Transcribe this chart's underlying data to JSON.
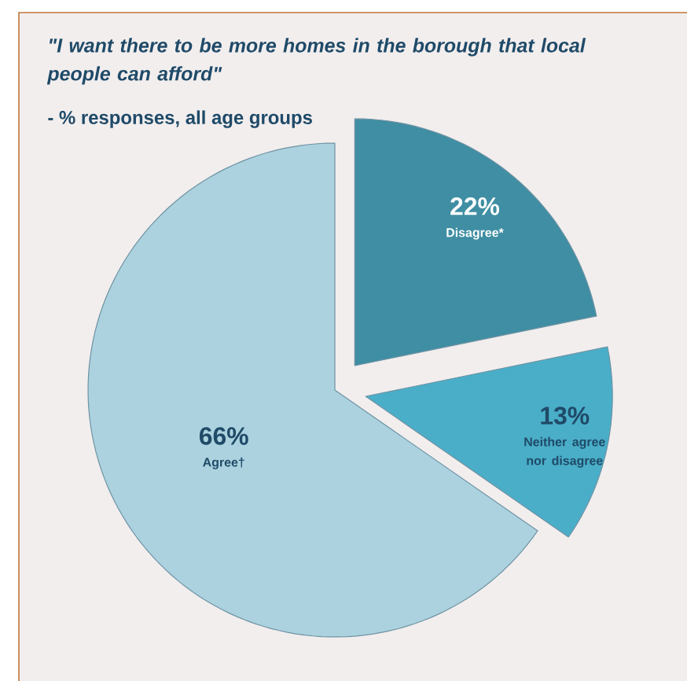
{
  "chart_data": {
    "type": "pie",
    "title": "\"I want there to be more homes in the borough that local people can afford\"",
    "subtitle": "- % responses, all age groups",
    "categories": [
      "Disagree*",
      "Neither agree nor disagree",
      "Agree†"
    ],
    "values": [
      22,
      13,
      66
    ],
    "value_labels": [
      "22%",
      "13%",
      "66%"
    ],
    "colors": [
      "#3f8ea3",
      "#4aaec8",
      "#abd2de"
    ]
  }
}
